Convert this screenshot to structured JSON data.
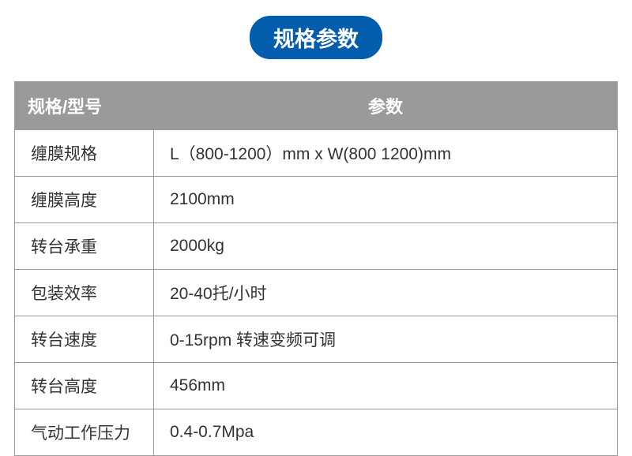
{
  "title": {
    "text": "规格参数",
    "background_color": "#035cac",
    "text_color": "#ffffff",
    "font_size": 27
  },
  "table": {
    "header_background": "#9a9a9a",
    "header_text_color": "#ffffff",
    "header_font_size": 22,
    "body_text_color": "#333333",
    "body_font_size": 21,
    "border_color": "#9a9a9a",
    "columns": [
      {
        "label": "规格/型号",
        "key": "spec"
      },
      {
        "label": "参数",
        "key": "param"
      }
    ],
    "rows": [
      {
        "spec": "缠膜规格",
        "param": "L（800-1200）mm x W(800 1200)mm"
      },
      {
        "spec": "缠膜高度",
        "param": "2100mm"
      },
      {
        "spec": "转台承重",
        "param": "2000kg"
      },
      {
        "spec": "包装效率",
        "param": "20-40托/小时"
      },
      {
        "spec": "转台速度",
        "param": "0-15rpm 转速变频可调"
      },
      {
        "spec": "转台高度",
        "param": "456mm"
      },
      {
        "spec": "气动工作压力",
        "param": "0.4-0.7Mpa"
      }
    ]
  }
}
